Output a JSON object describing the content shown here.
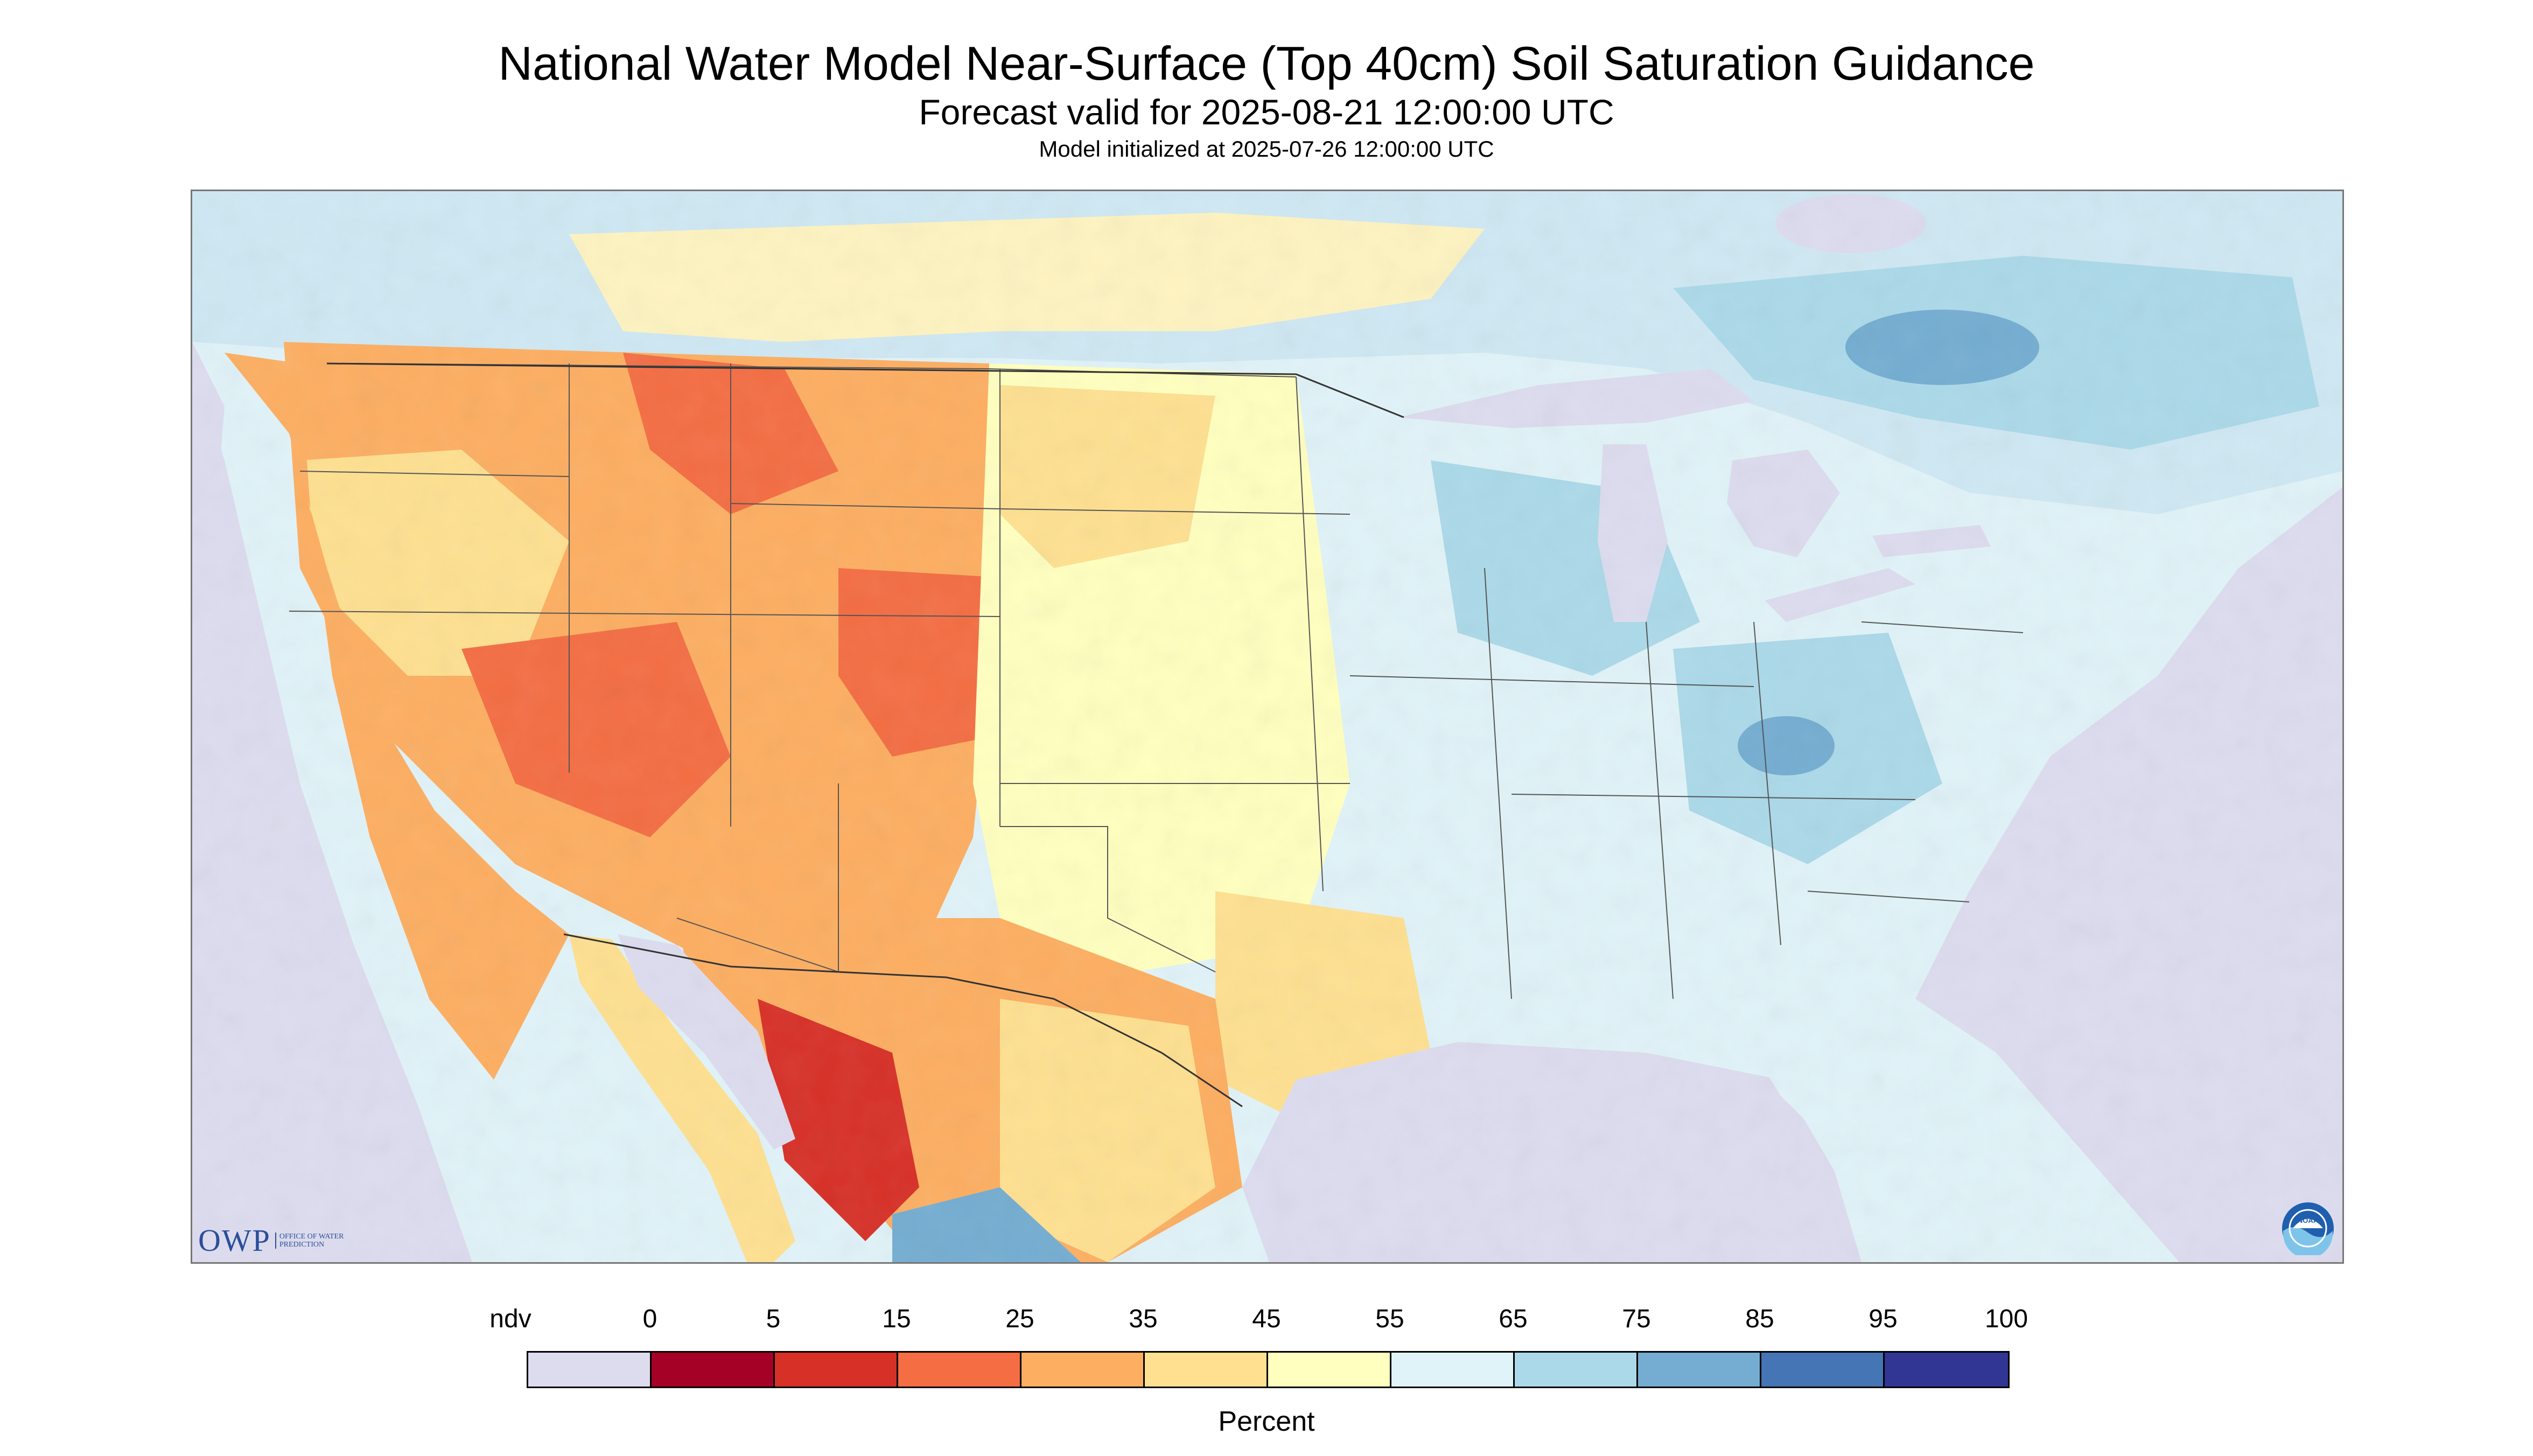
{
  "title": "National Water Model Near-Surface (Top 40cm) Soil Saturation Guidance",
  "subtitle": "Forecast valid for 2025-08-21 12:00:00 UTC",
  "init_line": "Model initialized at 2025-07-26 12:00:00 UTC",
  "owp_logo": {
    "text": "OWP",
    "subtext": "OFFICE OF WATER PREDICTION",
    "icon": "owp-logo"
  },
  "noaa_logo": {
    "text": "NOAA",
    "icon": "noaa-logo"
  },
  "legend": {
    "title": "Percent",
    "labels": [
      "ndv",
      "0",
      "5",
      "15",
      "25",
      "35",
      "45",
      "55",
      "65",
      "75",
      "85",
      "95",
      "100"
    ],
    "bins": [
      {
        "range": "ndv",
        "color": "#dddcef"
      },
      {
        "range": "0-5",
        "color": "#a50026"
      },
      {
        "range": "5-15",
        "color": "#d73027"
      },
      {
        "range": "15-25",
        "color": "#f46d43"
      },
      {
        "range": "25-35",
        "color": "#fdae61"
      },
      {
        "range": "35-45",
        "color": "#fee090"
      },
      {
        "range": "45-55",
        "color": "#ffffbf"
      },
      {
        "range": "55-65",
        "color": "#e0f3f8"
      },
      {
        "range": "65-75",
        "color": "#abd9e9"
      },
      {
        "range": "75-85",
        "color": "#74add1"
      },
      {
        "range": "85-95",
        "color": "#4575b4"
      },
      {
        "range": "95-100",
        "color": "#313695"
      }
    ]
  },
  "map": {
    "region": "Contiguous United States",
    "colors": {
      "ndv": "#dddcef",
      "state_border": "#555555",
      "coast": "#222222"
    }
  }
}
